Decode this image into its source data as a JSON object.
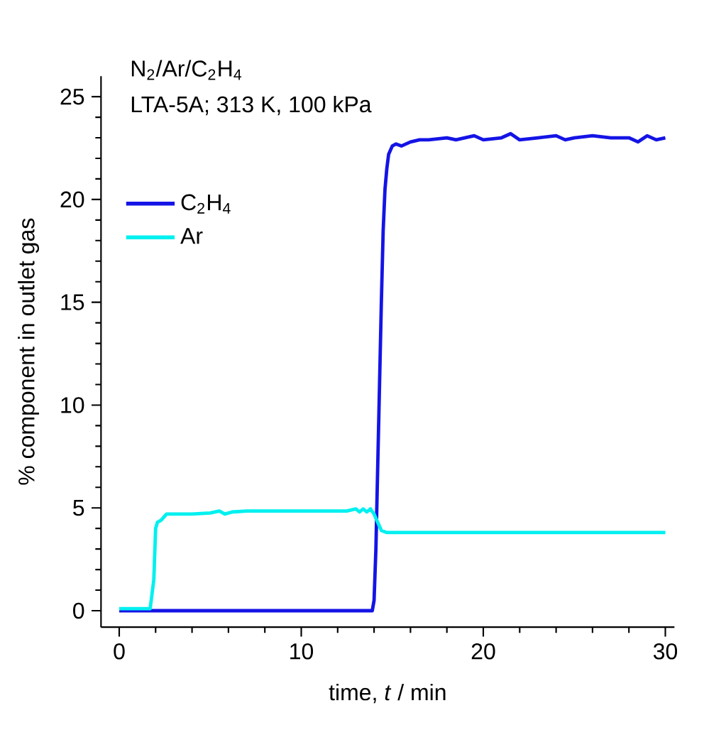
{
  "chart_data": {
    "type": "line",
    "annotations": [
      "N$_{2}$/Ar/C$_{2}$H$_{4}$",
      "LTA-5A; 313 K, 100 kPa"
    ],
    "xlabel": "time, *t* / min",
    "ylabel": "% component in outlet gas",
    "xlim": [
      -1,
      30.5
    ],
    "ylim": [
      -0.8,
      26
    ],
    "xticks": [
      0,
      {
        "value": 2,
        "label": null
      },
      {
        "value": 4,
        "label": null
      },
      {
        "value": 6,
        "label": null
      },
      {
        "value": 8,
        "label": null
      },
      10,
      {
        "value": 12,
        "label": null
      },
      {
        "value": 14,
        "label": null
      },
      {
        "value": 16,
        "label": null
      },
      {
        "value": 18,
        "label": null
      },
      20,
      {
        "value": 22,
        "label": null
      },
      {
        "value": 24,
        "label": null
      },
      {
        "value": 26,
        "label": null
      },
      {
        "value": 28,
        "label": null
      },
      30
    ],
    "yticks": [
      0,
      {
        "value": 1,
        "label": null
      },
      {
        "value": 2,
        "label": null
      },
      {
        "value": 3,
        "label": null
      },
      {
        "value": 4,
        "label": null
      },
      5,
      {
        "value": 6,
        "label": null
      },
      {
        "value": 7,
        "label": null
      },
      {
        "value": 8,
        "label": null
      },
      {
        "value": 9,
        "label": null
      },
      10,
      {
        "value": 11,
        "label": null
      },
      {
        "value": 12,
        "label": null
      },
      {
        "value": 13,
        "label": null
      },
      {
        "value": 14,
        "label": null
      },
      15,
      {
        "value": 16,
        "label": null
      },
      {
        "value": 17,
        "label": null
      },
      {
        "value": 18,
        "label": null
      },
      {
        "value": 19,
        "label": null
      },
      20,
      {
        "value": 21,
        "label": null
      },
      {
        "value": 22,
        "label": null
      },
      {
        "value": 23,
        "label": null
      },
      {
        "value": 24,
        "label": null
      },
      25
    ],
    "legend": "top left",
    "grid": false,
    "series": [
      {
        "name": "C$_{2}$H$_{4}$",
        "color": "#1414e6",
        "x": [
          0,
          13.9,
          14.0,
          14.1,
          14.2,
          14.3,
          14.4,
          14.5,
          14.6,
          14.7,
          14.8,
          15.0,
          15.2,
          15.5,
          16,
          16.5,
          17,
          18,
          18.5,
          19,
          19.5,
          20,
          21,
          21.5,
          22,
          23,
          24,
          24.5,
          25,
          26,
          27,
          28,
          28.5,
          29,
          29.5,
          30
        ],
        "values": [
          0,
          0,
          0.5,
          3,
          7,
          11,
          15,
          18.5,
          20.5,
          21.5,
          22.2,
          22.6,
          22.7,
          22.6,
          22.8,
          22.9,
          22.9,
          23.0,
          22.9,
          23.0,
          23.1,
          22.9,
          23.0,
          23.2,
          22.9,
          23.0,
          23.1,
          22.9,
          23.0,
          23.1,
          23.0,
          23.0,
          22.8,
          23.1,
          22.9,
          23.0
        ]
      },
      {
        "name": "Ar",
        "color": "#00f0f0",
        "x": [
          0,
          1.7,
          1.9,
          2.0,
          2.1,
          2.3,
          2.6,
          3,
          4,
          5,
          5.5,
          5.8,
          6.2,
          7,
          9,
          11,
          12.5,
          13.0,
          13.2,
          13.4,
          13.6,
          13.8,
          14.0,
          14.2,
          14.4,
          14.7,
          15,
          17,
          20,
          25,
          30
        ],
        "values": [
          0.1,
          0.1,
          1.5,
          4.0,
          4.3,
          4.4,
          4.7,
          4.7,
          4.7,
          4.75,
          4.85,
          4.7,
          4.8,
          4.85,
          4.85,
          4.85,
          4.85,
          4.95,
          4.8,
          4.95,
          4.8,
          4.95,
          4.7,
          4.3,
          3.9,
          3.8,
          3.8,
          3.8,
          3.8,
          3.8,
          3.8
        ]
      }
    ]
  }
}
